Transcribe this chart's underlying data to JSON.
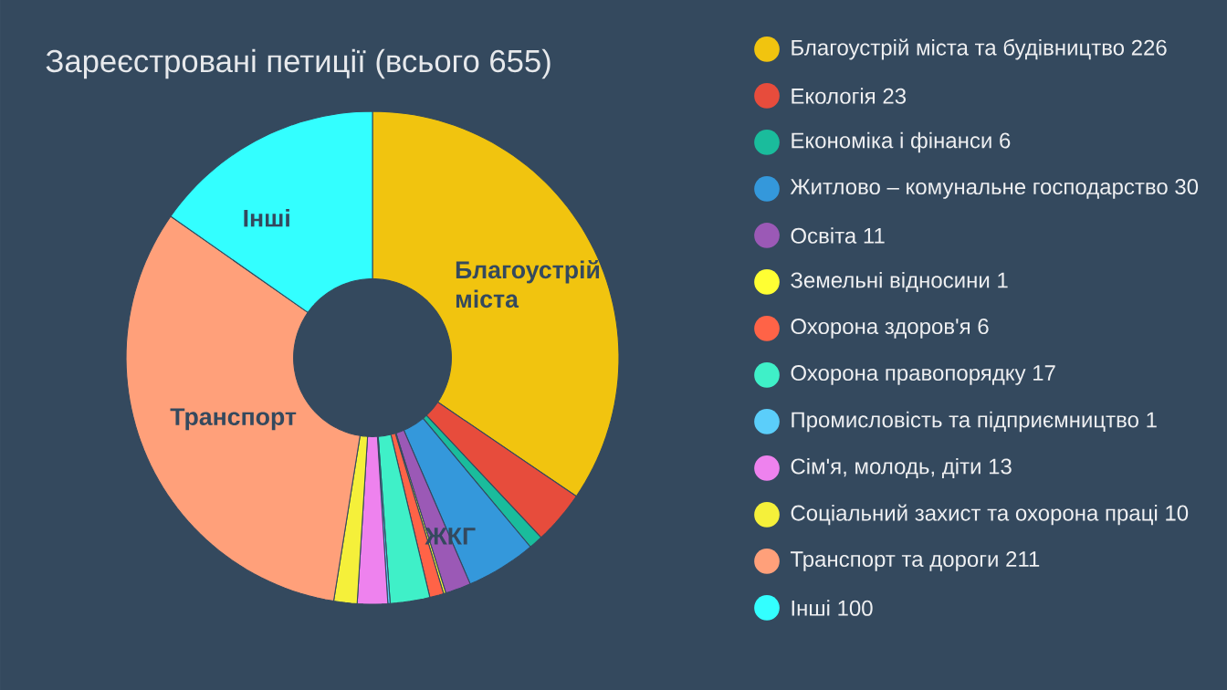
{
  "chart_data": {
    "type": "donut",
    "title": "Зареєстровані петиції (всього 655)",
    "categories": [
      "Благоустрій міста та будівництво 226",
      "Екологія 23",
      "Економіка і фінанси 6",
      "Житлово – комунальне господарство 30",
      "Освіта 11",
      "Земельні відносини 1",
      "Охорона здоров'я 6",
      "Охорона правопорядку 17",
      "Промисловість та підприємництво 1",
      "Сім'я, молодь, діти 13",
      "Соціальний захист та охорона праці 10",
      "Транспорт та дороги 211",
      "Інші 100"
    ],
    "values": [
      226,
      23,
      6,
      30,
      11,
      1,
      6,
      17,
      1,
      13,
      10,
      211,
      100
    ],
    "colors": [
      "#f1c40f",
      "#e74c3c",
      "#1abc9c",
      "#3498db",
      "#9b59b6",
      "#ffff33",
      "#ff6347",
      "#3ff0c8",
      "#5bcefa",
      "#ee82ee",
      "#f5f03a",
      "#ffa07a",
      "#33ffff"
    ],
    "annotations": [
      {
        "text": "Благоустрій міста",
        "x": "Благоустрій міста та будівництво 226"
      },
      {
        "text": "ЖКГ",
        "x": "Житлово – комунальне господарство 30"
      },
      {
        "text": "Транспорт",
        "x": "Транспорт та дороги 211"
      },
      {
        "text": "Інші",
        "x": "Інші 100"
      }
    ],
    "legend": "right"
  }
}
